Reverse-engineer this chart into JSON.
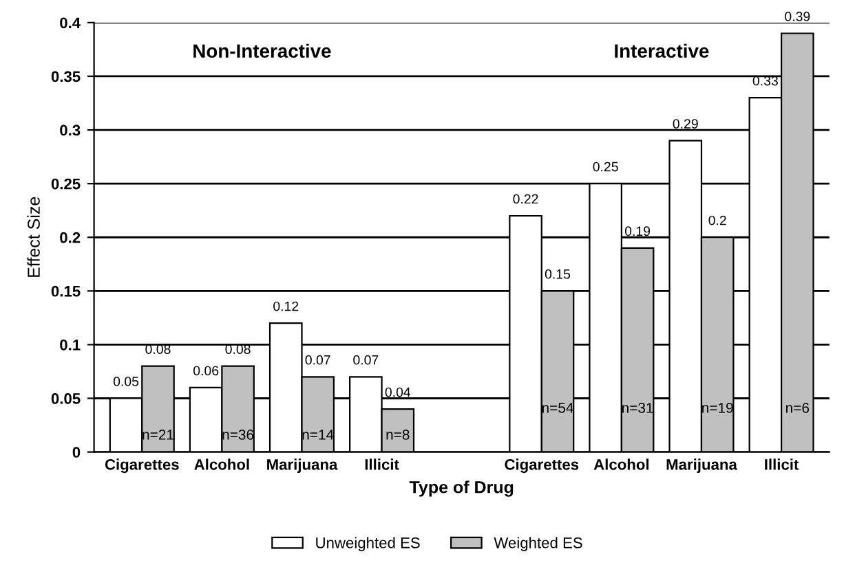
{
  "chart_data": {
    "type": "bar",
    "xlabel": "Type of Drug",
    "ylabel": "Effect Size",
    "categories": [
      "Cigarettes",
      "Alcohol",
      "Marijuana",
      "Illicit",
      null,
      "Cigarettes",
      "Alcohol",
      "Marijuana",
      "Illicit"
    ],
    "series": [
      {
        "name": "Unweighted ES",
        "color": "#ffffff",
        "values": [
          0.05,
          0.06,
          0.12,
          0.07,
          null,
          0.22,
          0.25,
          0.29,
          0.33
        ]
      },
      {
        "name": "Weighted ES",
        "color": "#c0c0c0",
        "values": [
          0.08,
          0.08,
          0.07,
          0.04,
          null,
          0.15,
          0.19,
          0.2,
          0.39
        ]
      }
    ],
    "annotations": [
      "Non-Interactive",
      "Interactive",
      "n=21",
      "n=36",
      "n=14",
      "n=8",
      "n=54",
      "n=31",
      "n=19",
      "n=6"
    ],
    "ylim": [
      0,
      0.4
    ],
    "yticks": [
      0,
      0.05,
      0.1,
      0.15,
      0.2,
      0.25,
      0.3,
      0.35,
      0.4
    ],
    "grid": "y",
    "legend": "bottom",
    "data_labels": true
  }
}
